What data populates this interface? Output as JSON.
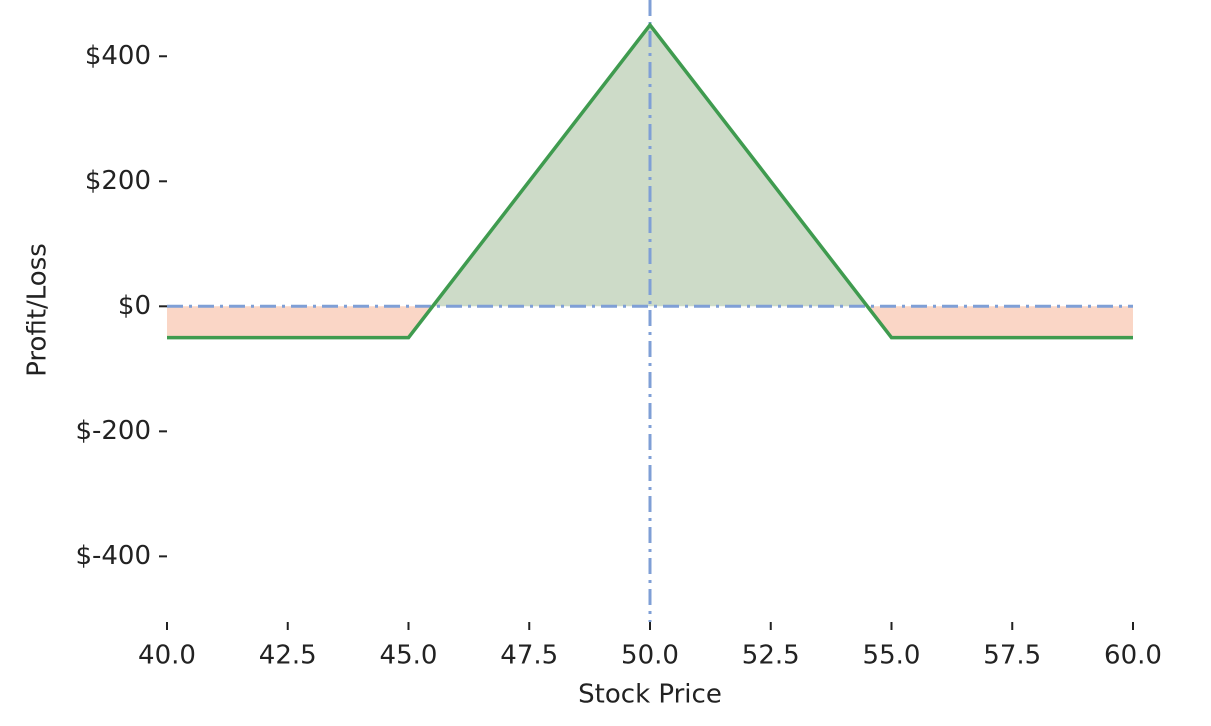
{
  "chart_data": {
    "type": "line",
    "x_label": "Stock Price",
    "y_label": "Profit/Loss",
    "x": [
      40,
      45,
      50,
      55,
      60
    ],
    "values": [
      -50,
      -50,
      450,
      -50,
      -50
    ],
    "color": "#3f9b4f",
    "profit_fill_color": "#cddbc8",
    "loss_fill_color": "#fad6c6",
    "reference_lines": {
      "x": 50,
      "y": 0,
      "color": "#7f9fd6"
    },
    "xlim": [
      40,
      60
    ],
    "xticks": [
      {
        "value": 40,
        "label": "40.0"
      },
      42.5,
      {
        "value": 45,
        "label": "45.0"
      },
      47.5,
      {
        "value": 50,
        "label": "50.0"
      },
      52.5,
      {
        "value": 55,
        "label": "55.0"
      },
      57.5,
      {
        "value": 60,
        "label": "60.0"
      }
    ],
    "ylim": [
      -505,
      490
    ],
    "yticks": [
      {
        "value": -400,
        "label": "$-400"
      },
      {
        "value": -200,
        "label": "$-200"
      },
      {
        "value": 0,
        "label": "$0"
      },
      {
        "value": 200,
        "label": "$200"
      },
      {
        "value": 400,
        "label": "$400"
      }
    ]
  }
}
